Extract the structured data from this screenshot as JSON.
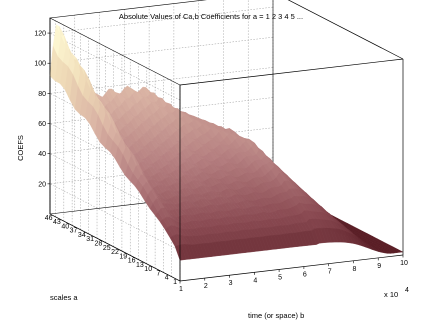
{
  "chart_data": {
    "type": "surface3d",
    "title": "Absolute Values of Ca,b Coefficients for a =  1 2 3 4 5 ...",
    "zlabel": "COEFS",
    "ylabel": "scales a",
    "xlabel": "time (or space) b",
    "x_exponent_label": "x 10",
    "x_exponent_power": "4",
    "x_ticks": [
      "1",
      "2",
      "3",
      "4",
      "5",
      "6",
      "7",
      "8",
      "9",
      "10"
    ],
    "y_ticks": [
      "1",
      "4",
      "7",
      "10",
      "13",
      "16",
      "19",
      "22",
      "25",
      "28",
      "31",
      "34",
      "37",
      "40",
      "43",
      "46"
    ],
    "z_ticks": [
      "20",
      "40",
      "60",
      "80",
      "100",
      "120"
    ],
    "xlim": [
      1,
      10
    ],
    "ylim": [
      1,
      48
    ],
    "zlim": [
      0,
      130
    ],
    "grid": true,
    "colormap": [
      "#5a1e26",
      "#8a4a52",
      "#b57f80",
      "#d9b2a3",
      "#f0dcb8",
      "#fffbd6"
    ]
  }
}
